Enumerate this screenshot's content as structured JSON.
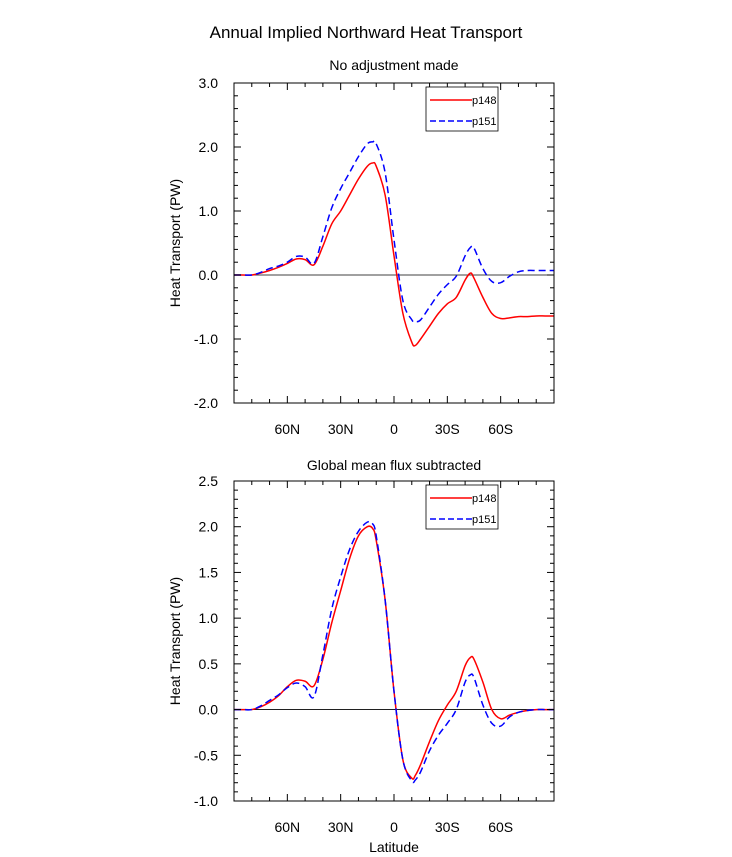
{
  "title": "Annual Implied Northward Heat Transport",
  "colors": {
    "p148": "#ff0000",
    "p151": "#0000ff",
    "axis": "#000000",
    "zero_line": "#000000"
  },
  "chart_data": [
    {
      "type": "line",
      "subtitle": "No adjustment made",
      "ylabel": "Heat Transport (PW)",
      "xlabel": "",
      "xlim": [
        90,
        -90
      ],
      "ylim": [
        -2.0,
        3.0
      ],
      "yticks": [
        -2.0,
        -1.0,
        0.0,
        1.0,
        2.0,
        3.0
      ],
      "ytick_labels": [
        "-2.0",
        "-1.0",
        "0.0",
        "1.0",
        "2.0",
        "3.0"
      ],
      "xticks": [
        60,
        30,
        0,
        -30,
        -60
      ],
      "xtick_labels": [
        "60N",
        "30N",
        "0",
        "30S",
        "60S"
      ],
      "zero_line": true,
      "legend": [
        "p148",
        "p151"
      ],
      "series": [
        {
          "name": "p148",
          "style": "solid",
          "x": [
            90,
            85,
            80,
            75,
            70,
            65,
            60,
            55,
            50,
            45,
            40,
            35,
            30,
            25,
            20,
            15,
            12,
            10,
            5,
            0,
            -5,
            -10,
            -12,
            -15,
            -20,
            -25,
            -30,
            -35,
            -40,
            -43,
            -45,
            -50,
            -55,
            -60,
            -65,
            -70,
            -75,
            -80,
            -85,
            -90
          ],
          "y": [
            0.0,
            0.0,
            0.0,
            0.03,
            0.07,
            0.12,
            0.18,
            0.25,
            0.24,
            0.16,
            0.45,
            0.8,
            1.0,
            1.25,
            1.5,
            1.7,
            1.75,
            1.7,
            1.25,
            0.3,
            -0.6,
            -1.05,
            -1.1,
            -1.0,
            -0.8,
            -0.6,
            -0.45,
            -0.35,
            -0.08,
            0.03,
            -0.05,
            -0.35,
            -0.6,
            -0.68,
            -0.67,
            -0.65,
            -0.65,
            -0.64,
            -0.64,
            -0.64
          ]
        },
        {
          "name": "p151",
          "style": "dashed",
          "x": [
            90,
            85,
            80,
            75,
            70,
            65,
            60,
            55,
            50,
            45,
            40,
            35,
            30,
            25,
            20,
            15,
            12,
            10,
            5,
            0,
            -5,
            -10,
            -12,
            -15,
            -20,
            -25,
            -30,
            -35,
            -40,
            -43,
            -45,
            -50,
            -55,
            -60,
            -65,
            -70,
            -75,
            -80,
            -85,
            -90
          ],
          "y": [
            0.0,
            0.0,
            0.0,
            0.04,
            0.1,
            0.14,
            0.2,
            0.29,
            0.28,
            0.18,
            0.6,
            1.05,
            1.35,
            1.6,
            1.85,
            2.05,
            2.08,
            2.05,
            1.6,
            0.55,
            -0.4,
            -0.7,
            -0.73,
            -0.7,
            -0.5,
            -0.3,
            -0.15,
            -0.02,
            0.3,
            0.43,
            0.42,
            0.1,
            -0.1,
            -0.12,
            -0.02,
            0.05,
            0.07,
            0.07,
            0.07,
            0.07
          ]
        }
      ]
    },
    {
      "type": "line",
      "subtitle": "Global mean flux subtracted",
      "ylabel": "Heat Transport (PW)",
      "xlabel": "Latitude",
      "xlim": [
        90,
        -90
      ],
      "ylim": [
        -1.0,
        2.5
      ],
      "yticks": [
        -1.0,
        -0.5,
        0.0,
        0.5,
        1.0,
        1.5,
        2.0,
        2.5
      ],
      "ytick_labels": [
        "-1.0",
        "-0.5",
        "0.0",
        "0.5",
        "1.0",
        "1.5",
        "2.0",
        "2.5"
      ],
      "xticks": [
        60,
        30,
        0,
        -30,
        -60
      ],
      "xtick_labels": [
        "60N",
        "30N",
        "0",
        "30S",
        "60S"
      ],
      "zero_line": true,
      "legend": [
        "p148",
        "p151"
      ],
      "series": [
        {
          "name": "p148",
          "style": "solid",
          "x": [
            90,
            85,
            80,
            75,
            70,
            65,
            60,
            55,
            50,
            45,
            40,
            35,
            30,
            25,
            20,
            15,
            12,
            10,
            5,
            0,
            -5,
            -10,
            -12,
            -15,
            -20,
            -25,
            -30,
            -35,
            -40,
            -43,
            -45,
            -50,
            -55,
            -60,
            -65,
            -70,
            -75,
            -80,
            -85,
            -90
          ],
          "y": [
            0.0,
            0.0,
            0.0,
            0.03,
            0.08,
            0.15,
            0.25,
            0.32,
            0.31,
            0.26,
            0.55,
            0.95,
            1.3,
            1.65,
            1.9,
            2.0,
            1.98,
            1.85,
            1.2,
            0.2,
            -0.55,
            -0.75,
            -0.72,
            -0.6,
            -0.35,
            -0.12,
            0.05,
            0.2,
            0.48,
            0.57,
            0.55,
            0.3,
            0.0,
            -0.1,
            -0.06,
            -0.03,
            -0.01,
            0.0,
            0.0,
            0.0
          ]
        },
        {
          "name": "p151",
          "style": "dashed",
          "x": [
            90,
            85,
            80,
            75,
            70,
            65,
            60,
            55,
            50,
            45,
            40,
            35,
            30,
            25,
            20,
            15,
            12,
            10,
            5,
            0,
            -5,
            -10,
            -12,
            -15,
            -20,
            -25,
            -30,
            -35,
            -40,
            -43,
            -45,
            -50,
            -55,
            -60,
            -65,
            -70,
            -75,
            -80,
            -85,
            -90
          ],
          "y": [
            0.0,
            0.0,
            0.0,
            0.04,
            0.1,
            0.16,
            0.24,
            0.29,
            0.25,
            0.14,
            0.6,
            1.1,
            1.45,
            1.75,
            1.95,
            2.05,
            2.03,
            1.9,
            1.2,
            0.2,
            -0.55,
            -0.78,
            -0.77,
            -0.68,
            -0.45,
            -0.28,
            -0.15,
            0.0,
            0.3,
            0.38,
            0.35,
            0.05,
            -0.15,
            -0.18,
            -0.08,
            -0.03,
            -0.01,
            0.0,
            0.0,
            0.0
          ]
        }
      ]
    }
  ]
}
